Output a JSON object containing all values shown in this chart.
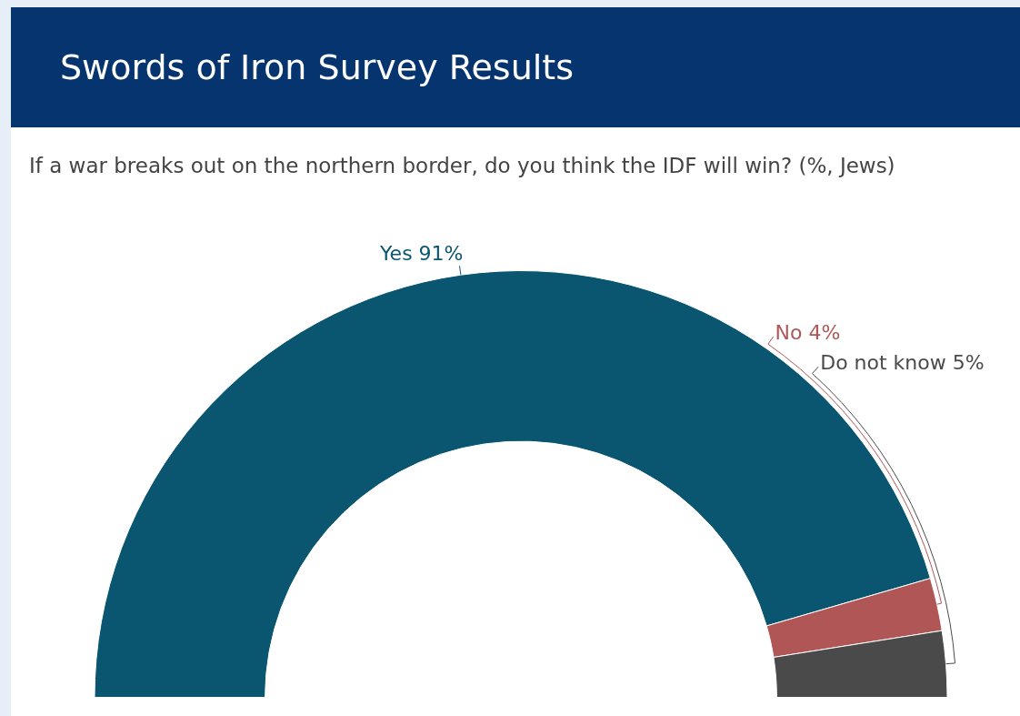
{
  "chart_data": {
    "type": "donut",
    "title": "Swords of Iron Survey Results",
    "subtitle": "If a war breaks out on the northern border, do you think the IDF will win? (%, Jews)",
    "categories": [
      "Yes",
      "No",
      "Do not know"
    ],
    "values": [
      91,
      4,
      5
    ],
    "colors": [
      "#0a5670",
      "#b05656",
      "#4a4a4a"
    ],
    "value_labels": [
      "91%",
      "4%",
      "5%"
    ],
    "legend": false
  }
}
